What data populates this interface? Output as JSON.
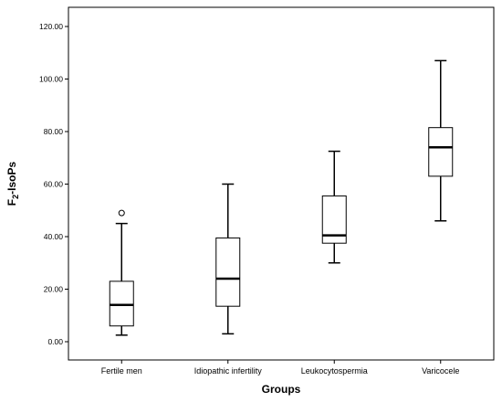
{
  "chart_data": {
    "type": "boxplot",
    "xlabel": "Groups",
    "ylabel_main": "F",
    "ylabel_sub": "2",
    "ylabel_tail": "-IsoPs",
    "ylim": [
      0,
      120
    ],
    "yticks": [
      0,
      20,
      40,
      60,
      80,
      100,
      120
    ],
    "ytick_labels": [
      "0.00",
      "20.00",
      "40.00",
      "60.00",
      "80.00",
      "100.00",
      "120.00"
    ],
    "grid": false,
    "categories": [
      "Fertile men",
      "Idiopathic infertility",
      "Leukocytospermia",
      "Varicocele"
    ],
    "boxes": [
      {
        "whisker_low": 2.5,
        "q1": 6,
        "median": 14,
        "q3": 23,
        "whisker_high": 45,
        "outliers": [
          49
        ]
      },
      {
        "whisker_low": 3,
        "q1": 13.5,
        "median": 24,
        "q3": 39.5,
        "whisker_high": 60,
        "outliers": []
      },
      {
        "whisker_low": 30,
        "q1": 37.5,
        "median": 40.5,
        "q3": 55.5,
        "whisker_high": 72.5,
        "outliers": []
      },
      {
        "whisker_low": 46,
        "q1": 63,
        "median": 74,
        "q3": 81.5,
        "whisker_high": 107,
        "outliers": []
      }
    ]
  }
}
